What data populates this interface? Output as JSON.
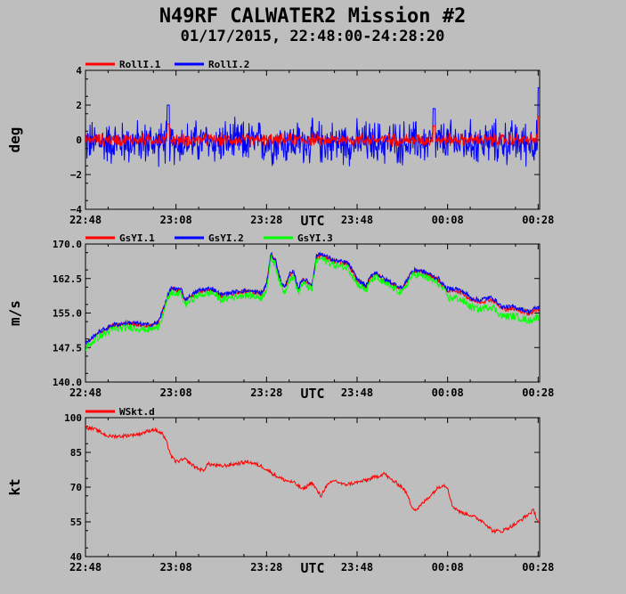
{
  "title": "N49RF CALWATER2 Mission #2",
  "subtitle": "01/17/2015, 22:48:00-24:28:20",
  "colors": {
    "background": "#bebebe",
    "red": "#ff0000",
    "blue": "#0000ff",
    "green": "#00ff00"
  },
  "chart_data": [
    {
      "type": "line",
      "ylabel": "deg",
      "xlabel": "UTC",
      "ylim": [
        -4,
        4
      ],
      "yticks": [
        "4",
        "2",
        "0",
        "−2",
        "−4"
      ],
      "xticks": [
        "22:48",
        "23:08",
        "23:28",
        "23:48",
        "00:08",
        "00:28"
      ],
      "xlim_minutes": [
        0,
        100.33
      ],
      "legend": "top-left",
      "series": [
        {
          "name": "RollI.1",
          "color": "#ff0000",
          "mean": 0.0,
          "noise_amplitude": 0.35
        },
        {
          "name": "RollI.2",
          "color": "#0000ff",
          "mean": -0.15,
          "noise_amplitude": 1.2
        }
      ],
      "peaks": [
        {
          "x_minutes": 18.3,
          "y": 2.0
        },
        {
          "x_minutes": 77.0,
          "y": 1.8
        },
        {
          "x_minutes": 100.2,
          "y": 3.0
        }
      ]
    },
    {
      "type": "line",
      "ylabel": "m/s",
      "xlabel": "UTC",
      "ylim": [
        140.0,
        170.0
      ],
      "yticks": [
        "170.0",
        "162.5",
        "155.0",
        "147.5",
        "140.0"
      ],
      "xticks": [
        "22:48",
        "23:08",
        "23:28",
        "23:48",
        "00:08",
        "00:28"
      ],
      "xlim_minutes": [
        0,
        100.33
      ],
      "legend": "top-left",
      "series": [
        {
          "name": "GsYI.1",
          "color": "#ff0000"
        },
        {
          "name": "GsYI.2",
          "color": "#0000ff"
        },
        {
          "name": "GsYI.3",
          "color": "#00ff00"
        }
      ],
      "x": [
        0,
        3,
        6,
        10,
        14,
        16,
        17,
        18,
        19,
        20,
        21,
        22,
        25,
        28,
        30,
        32,
        35,
        39,
        40,
        41,
        42,
        43,
        44,
        45,
        46,
        47,
        48,
        49,
        50,
        51,
        52,
        53,
        55,
        58,
        60,
        62,
        63,
        64,
        66,
        68,
        70,
        72,
        73,
        75,
        78,
        80,
        82,
        84,
        85,
        87,
        89,
        90,
        92,
        95,
        98,
        100
      ],
      "values": [
        148.0,
        150.5,
        152.0,
        152.5,
        152.0,
        152.5,
        155.0,
        158.0,
        160.2,
        159.5,
        160.0,
        157.5,
        159.5,
        160.0,
        158.5,
        159.0,
        159.5,
        159.0,
        161.0,
        167.5,
        166.0,
        162.0,
        160.0,
        163.0,
        163.5,
        160.0,
        162.0,
        161.5,
        160.5,
        167.0,
        167.5,
        167.0,
        166.0,
        165.5,
        162.0,
        160.5,
        162.5,
        163.5,
        162.0,
        161.0,
        160.0,
        163.5,
        164.0,
        163.5,
        162.0,
        159.5,
        159.5,
        158.5,
        157.5,
        157.0,
        157.5,
        157.5,
        155.5,
        155.5,
        154.5,
        155.5
      ]
    },
    {
      "type": "line",
      "ylabel": "kt",
      "xlabel": "UTC",
      "ylim": [
        40,
        100
      ],
      "yticks": [
        "100",
        "85",
        "70",
        "55",
        "40"
      ],
      "xticks": [
        "22:48",
        "23:08",
        "23:28",
        "23:48",
        "00:08",
        "00:28"
      ],
      "xlim_minutes": [
        0,
        100.33
      ],
      "legend": "top-left",
      "series": [
        {
          "name": "WSkt.d",
          "color": "#ff0000"
        }
      ],
      "x": [
        0,
        2,
        5,
        8,
        12,
        15,
        17,
        18,
        19,
        20,
        22,
        24,
        26,
        27,
        30,
        33,
        36,
        39,
        42,
        44,
        46,
        48,
        50,
        51,
        52,
        53,
        55,
        57,
        60,
        62,
        65,
        66,
        67,
        70,
        71,
        72,
        73,
        75,
        77,
        78,
        79,
        80,
        81,
        83,
        85,
        87,
        88,
        89,
        90,
        92,
        95,
        97,
        99,
        100
      ],
      "values": [
        96,
        95,
        92,
        92,
        93,
        95,
        93,
        89,
        83,
        81,
        82,
        79,
        77,
        80,
        79,
        80,
        81,
        79,
        75,
        73,
        72,
        69,
        72,
        69,
        66,
        70,
        73,
        71,
        72,
        73,
        75,
        76,
        74,
        70,
        67,
        62,
        60,
        64,
        68,
        70,
        71,
        70,
        62,
        59,
        58,
        56,
        55,
        53,
        51,
        51,
        54,
        57,
        60,
        55
      ]
    }
  ]
}
